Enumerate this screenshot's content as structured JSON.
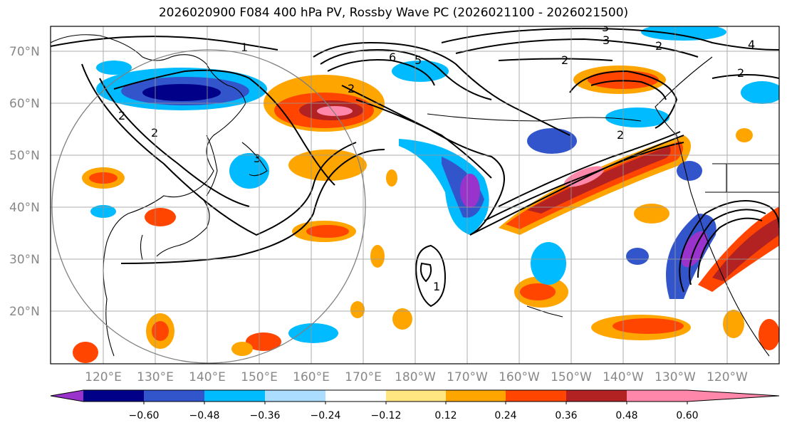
{
  "title": "2026020900 F084 400 hPa PV, Rossby Wave PC (2026021100 - 2026021500)",
  "axes": {
    "lat_labels": [
      "70°N",
      "60°N",
      "50°N",
      "40°N",
      "30°N",
      "20°N"
    ],
    "lon_labels": [
      "120°E",
      "130°E",
      "140°E",
      "150°E",
      "160°E",
      "170°E",
      "180°W",
      "170°W",
      "160°W",
      "150°W",
      "140°W",
      "130°W",
      "120°W"
    ]
  },
  "contour_labels": [
    "1",
    "2",
    "3",
    "6",
    "5",
    "2",
    "3",
    "2",
    "2",
    "2",
    "3",
    "2",
    "4",
    "2",
    "1"
  ],
  "colorbar": {
    "ticks": [
      "−0.60",
      "−0.48",
      "−0.36",
      "−0.24",
      "−0.12",
      "0.12",
      "0.24",
      "0.36",
      "0.48",
      "0.60"
    ],
    "colors": [
      "#9933cc",
      "#000088",
      "#3355cc",
      "#00bbff",
      "#aaddff",
      "#ffffff",
      "#ffe680",
      "#ffa500",
      "#ff4500",
      "#b22222",
      "#ff88aa"
    ]
  }
}
